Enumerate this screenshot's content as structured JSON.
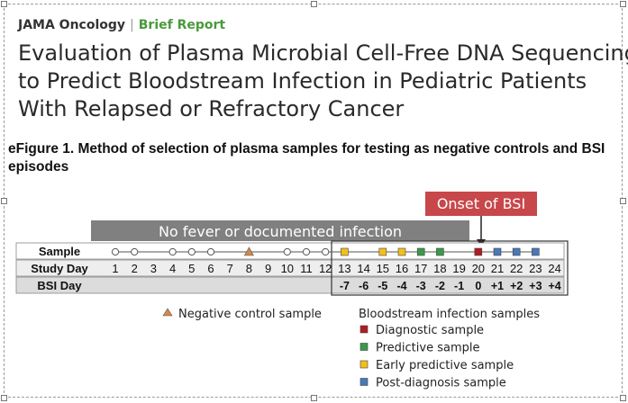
{
  "journal": {
    "name": "JAMA Oncology",
    "article_type": "Brief Report"
  },
  "title_lines": [
    "Evaluation of Plasma Microbial Cell-Free DNA Sequencing",
    "to Predict Bloodstream Infection in Pediatric Patients",
    "With Relapsed or Refractory Cancer"
  ],
  "caption": "eFigure 1. Method of selection of plasma samples for testing as negative controls and BSI episodes",
  "figure": {
    "no_fever_label": "No fever or documented infection",
    "onset_label": "Onset of BSI",
    "row_labels": {
      "sample": "Sample",
      "study_day": "Study Day",
      "bsi_day": "BSI Day"
    },
    "study_days": [
      "1",
      "2",
      "3",
      "4",
      "5",
      "6",
      "7",
      "8",
      "9",
      "10",
      "11",
      "12",
      "13",
      "14",
      "15",
      "16",
      "17",
      "18",
      "19",
      "20",
      "21",
      "22",
      "23",
      "24"
    ],
    "bsi_days": [
      "",
      "",
      "",
      "",
      "",
      "",
      "",
      "",
      "",
      "",
      "",
      "",
      "-7",
      "-6",
      "-5",
      "-4",
      "-3",
      "-2",
      "-1",
      "0",
      "+1",
      "+2",
      "+3",
      "+4"
    ],
    "samples": [
      "open",
      "open",
      "",
      "open",
      "open",
      "open",
      "",
      "negative",
      "",
      "open",
      "open",
      "open",
      "early",
      "",
      "early",
      "early",
      "predictive",
      "predictive",
      "",
      "diagnostic",
      "post",
      "post",
      "post",
      ""
    ],
    "colors": {
      "open": "#ffffff",
      "negative": "#d4884a",
      "early": "#f2c01e",
      "predictive": "#3a9a4a",
      "diagnostic": "#b01c22",
      "post": "#4a78b8",
      "no_fever_bar": "#808080",
      "onset_box": "#c8474a"
    },
    "legend": {
      "negative_label": "Negative control sample",
      "bsi_header": "Bloodstream infection samples",
      "items": [
        {
          "key": "diagnostic",
          "label": "Diagnostic sample"
        },
        {
          "key": "predictive",
          "label": "Predictive sample"
        },
        {
          "key": "early",
          "label": "Early predictive sample"
        },
        {
          "key": "post",
          "label": "Post-diagnosis sample"
        }
      ]
    }
  }
}
